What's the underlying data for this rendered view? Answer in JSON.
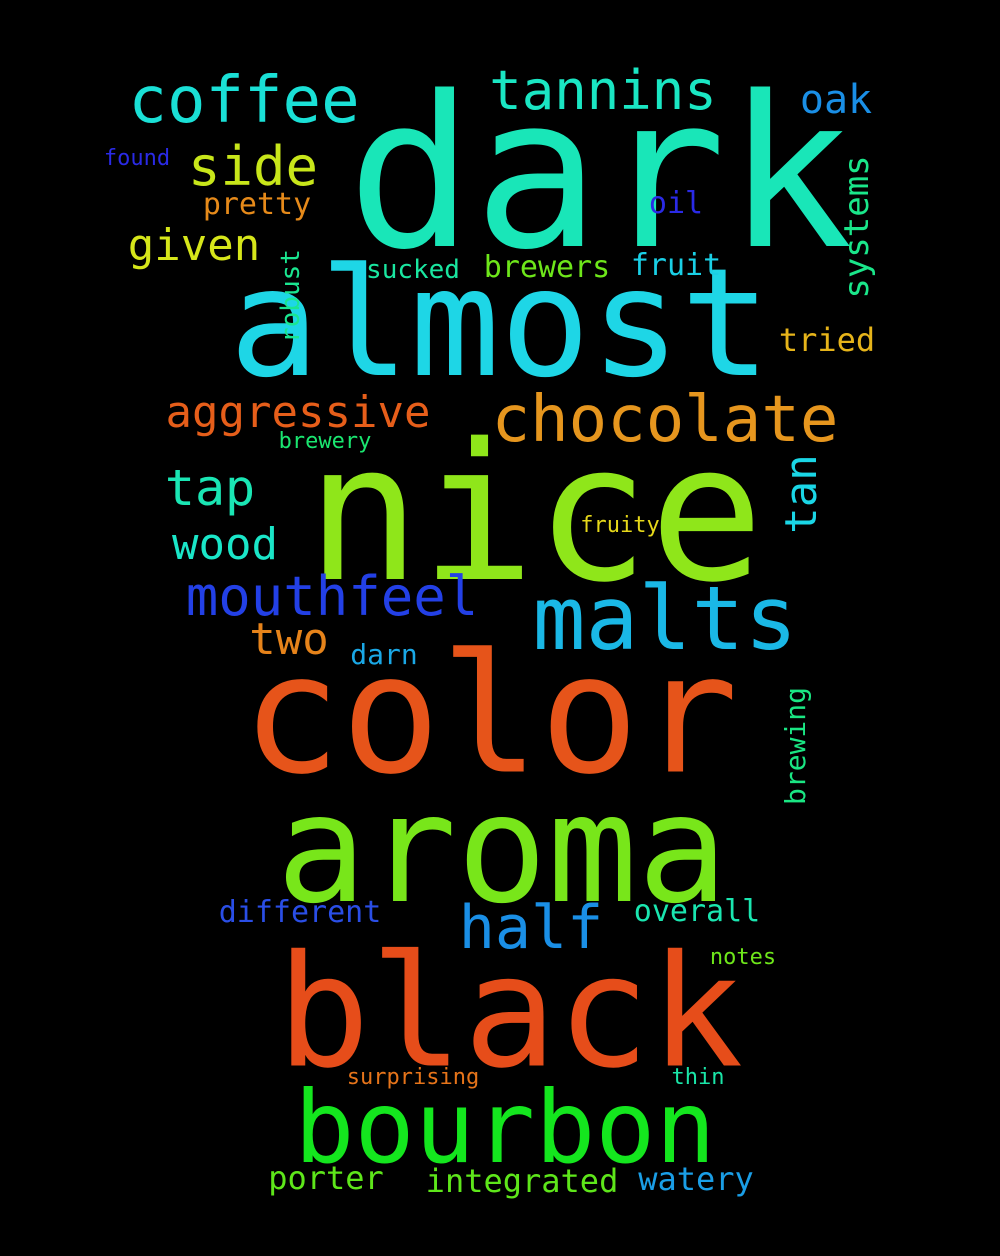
{
  "words": [
    {
      "text": "dark",
      "color": "#19e6b8"
    },
    {
      "text": "almost",
      "color": "#1ed6e6"
    },
    {
      "text": "nice",
      "color": "#8fe61a"
    },
    {
      "text": "color",
      "color": "#e6541a"
    },
    {
      "text": "aroma",
      "color": "#78e61a"
    },
    {
      "text": "black",
      "color": "#e64d1a"
    },
    {
      "text": "bourbon",
      "color": "#14e61e"
    },
    {
      "text": "malts",
      "color": "#1ab8e6"
    },
    {
      "text": "chocolate",
      "color": "#e6961e"
    },
    {
      "text": "coffee",
      "color": "#1ae0d6"
    },
    {
      "text": "tannins",
      "color": "#1ae6c3"
    },
    {
      "text": "half",
      "color": "#1a8fe6"
    },
    {
      "text": "mouthfeel",
      "color": "#2340e6"
    },
    {
      "text": "aggressive",
      "color": "#e65e1a"
    },
    {
      "text": "side",
      "color": "#c8e61a"
    },
    {
      "text": "given",
      "color": "#d6e61a"
    },
    {
      "text": "tap",
      "color": "#1ae6b4"
    },
    {
      "text": "wood",
      "color": "#1ae6c8"
    },
    {
      "text": "two",
      "color": "#e6831a"
    },
    {
      "text": "oak",
      "color": "#1a8fe6"
    },
    {
      "text": "systems",
      "color": "#1ae68a"
    },
    {
      "text": "tan",
      "color": "#1ad6e6"
    },
    {
      "text": "brewing",
      "color": "#1ae683"
    },
    {
      "text": "tried",
      "color": "#e6b41a"
    },
    {
      "text": "pretty",
      "color": "#e68a1a"
    },
    {
      "text": "oil",
      "color": "#2a2ae6"
    },
    {
      "text": "found",
      "color": "#2a2ae6"
    },
    {
      "text": "brewers",
      "color": "#6ee61a"
    },
    {
      "text": "sucked",
      "color": "#1ae6a0"
    },
    {
      "text": "fruit",
      "color": "#1ad0e6"
    },
    {
      "text": "robust",
      "color": "#1ae690"
    },
    {
      "text": "brewery",
      "color": "#1ae670"
    },
    {
      "text": "fruity",
      "color": "#e6d81a"
    },
    {
      "text": "darn",
      "color": "#1aa8e6"
    },
    {
      "text": "different",
      "color": "#2a4ee6"
    },
    {
      "text": "overall",
      "color": "#1ae6b0"
    },
    {
      "text": "notes",
      "color": "#6ee61a"
    },
    {
      "text": "surprising",
      "color": "#e6741a"
    },
    {
      "text": "thin",
      "color": "#1ae6a8"
    },
    {
      "text": "porter",
      "color": "#5ee61a"
    },
    {
      "text": "integrated",
      "color": "#5ee61a"
    },
    {
      "text": "watery",
      "color": "#1a9ee6"
    }
  ]
}
